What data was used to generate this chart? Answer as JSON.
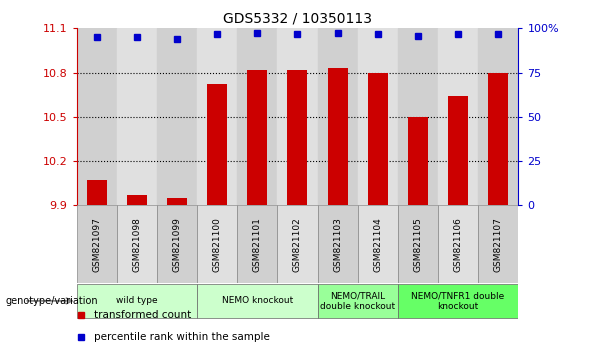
{
  "title": "GDS5332 / 10350113",
  "samples": [
    "GSM821097",
    "GSM821098",
    "GSM821099",
    "GSM821100",
    "GSM821101",
    "GSM821102",
    "GSM821103",
    "GSM821104",
    "GSM821105",
    "GSM821106",
    "GSM821107"
  ],
  "bar_values": [
    10.07,
    9.97,
    9.95,
    10.72,
    10.82,
    10.82,
    10.83,
    10.8,
    10.5,
    10.64,
    10.8
  ],
  "percentile_values": [
    11.04,
    11.04,
    11.03,
    11.06,
    11.07,
    11.06,
    11.07,
    11.06,
    11.05,
    11.06,
    11.06
  ],
  "bar_color": "#cc0000",
  "percentile_color": "#0000cc",
  "ylim_left": [
    9.9,
    11.1
  ],
  "ylim_right": [
    0,
    100
  ],
  "yticks_left": [
    9.9,
    10.2,
    10.5,
    10.8,
    11.1
  ],
  "yticks_right": [
    0,
    25,
    50,
    75,
    100
  ],
  "ytick_labels_left": [
    "9.9",
    "10.2",
    "10.5",
    "10.8",
    "11.1"
  ],
  "ytick_labels_right": [
    "0",
    "25",
    "50",
    "75",
    "100%"
  ],
  "hlines": [
    10.2,
    10.5,
    10.8
  ],
  "groups": [
    {
      "label": "wild type",
      "start": 0,
      "end": 2,
      "color": "#ccffcc"
    },
    {
      "label": "NEMO knockout",
      "start": 3,
      "end": 5,
      "color": "#ccffcc"
    },
    {
      "label": "NEMO/TRAIL\ndouble knockout",
      "start": 6,
      "end": 7,
      "color": "#99ff99"
    },
    {
      "label": "NEMO/TNFR1 double\nknockout",
      "start": 8,
      "end": 10,
      "color": "#66ff66"
    }
  ],
  "sample_col_colors": [
    "#d0d0d0",
    "#e0e0e0",
    "#d0d0d0",
    "#e0e0e0",
    "#d0d0d0",
    "#e0e0e0",
    "#d0d0d0",
    "#e0e0e0",
    "#d0d0d0",
    "#e0e0e0",
    "#d0d0d0"
  ],
  "genotype_label": "genotype/variation",
  "legend_bar_label": "transformed count",
  "legend_pct_label": "percentile rank within the sample",
  "background_color": "#ffffff",
  "left_axis_color": "#cc0000",
  "right_axis_color": "#0000cc"
}
